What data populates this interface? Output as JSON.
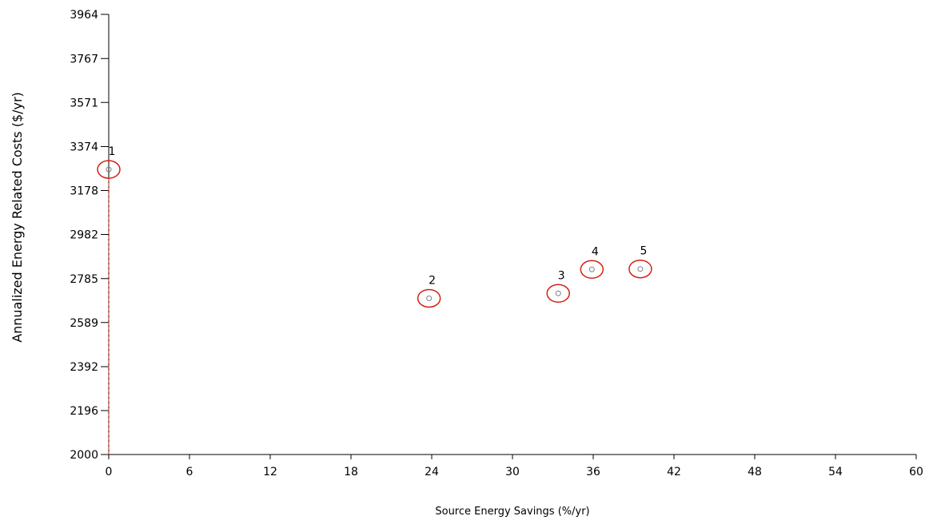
{
  "chart_data": {
    "type": "scatter",
    "title": "",
    "xlabel": "Source Energy Savings (%/yr)",
    "ylabel": "Annualized Energy Related Costs ($/yr)",
    "xlim": [
      0,
      60
    ],
    "ylim": [
      2000,
      3964
    ],
    "x_ticks": [
      0,
      6,
      12,
      18,
      24,
      30,
      36,
      42,
      48,
      54,
      60
    ],
    "y_ticks": [
      2000,
      2196,
      2392,
      2589,
      2785,
      2982,
      3178,
      3374,
      3571,
      3767,
      3964
    ],
    "grid": false,
    "series": [
      {
        "points": [
          {
            "label": "1",
            "x": 0,
            "y": 3272
          },
          {
            "label": "2",
            "x": 23.8,
            "y": 2697
          },
          {
            "label": "3",
            "x": 33.4,
            "y": 2719
          },
          {
            "label": "4",
            "x": 35.9,
            "y": 2826
          },
          {
            "label": "5",
            "x": 39.5,
            "y": 2828
          }
        ]
      }
    ],
    "colors": {
      "marker_ring": "#d42010",
      "marker_dot": "#808080",
      "axis": "#000000",
      "vertical_line": "#d42010"
    }
  }
}
